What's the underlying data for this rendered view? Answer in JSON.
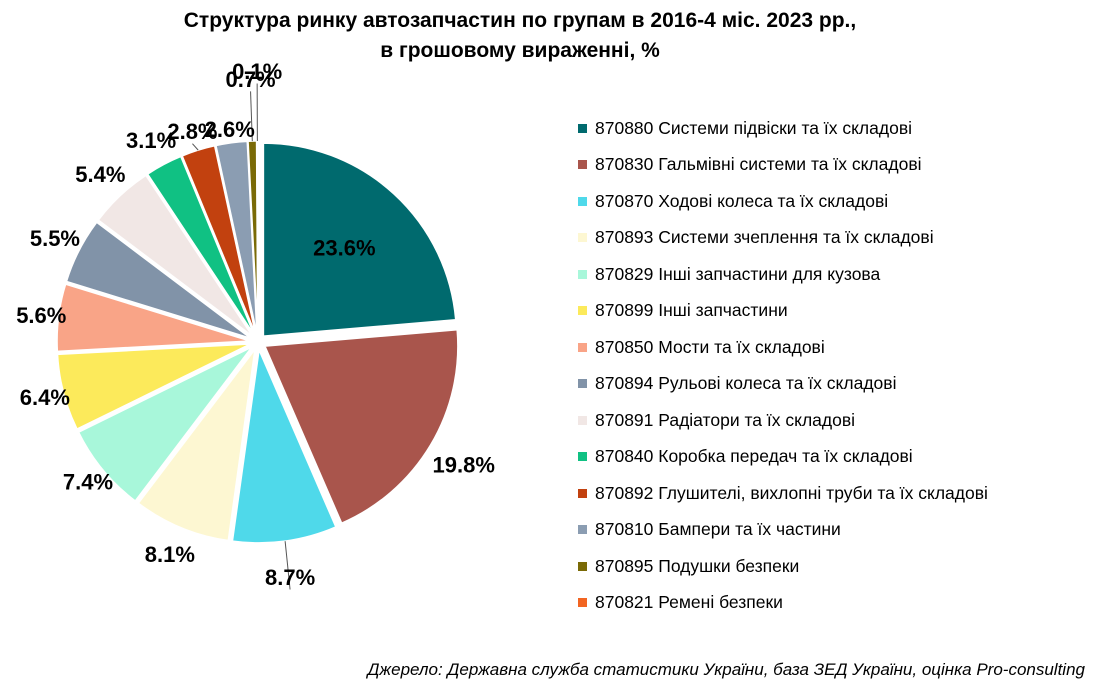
{
  "title": {
    "line1": "Структура ринку автозапчастин по групам в 2016-4 міс. 2023 рр.,",
    "line2": "в грошовому вираженні, %"
  },
  "source": "Джерело: Державна служба статистики України, база ЗЕД України, оцінка Pro-consulting",
  "chart_data": {
    "type": "pie",
    "title": "Структура ринку автозапчастин по групам в 2016-4 міс. 2023 рр., в грошовому вираженні, %",
    "legend_position": "right",
    "slices": [
      {
        "label": "870880 Системи підвіски та їх складові",
        "value": 23.6,
        "display": "23.6%",
        "color": "#006A6E"
      },
      {
        "label": "870830 Гальмівні системи та їх складові",
        "value": 19.8,
        "display": "19.8%",
        "color": "#A9554C"
      },
      {
        "label": "870870 Ходові колеса та їх складові",
        "value": 8.7,
        "display": "8.7%",
        "color": "#4FD9EA"
      },
      {
        "label": "870893 Системи зчеплення та їх складові",
        "value": 8.1,
        "display": "8.1%",
        "color": "#FDF7D2"
      },
      {
        "label": "870829 Інші запчастини для кузова",
        "value": 7.4,
        "display": "7.4%",
        "color": "#A8F7DA"
      },
      {
        "label": "870899 Інші запчастини",
        "value": 6.4,
        "display": "6.4%",
        "color": "#FCEA5B"
      },
      {
        "label": "870850 Мости та їх складові",
        "value": 5.6,
        "display": "5.6%",
        "color": "#F9A487"
      },
      {
        "label": "870894 Рульові колеса та їх складові",
        "value": 5.5,
        "display": "5.5%",
        "color": "#8193A8"
      },
      {
        "label": "870891 Радіатори та їх складові",
        "value": 5.4,
        "display": "5.4%",
        "color": "#F1E7E5"
      },
      {
        "label": "870840 Коробка передач та їх складові",
        "value": 3.1,
        "display": "3.1%",
        "color": "#10C183"
      },
      {
        "label": "870892 Глушителі, вихлопні труби та їх складові",
        "value": 2.8,
        "display": "2.8%",
        "color": "#C2410F"
      },
      {
        "label": "870810 Бампери та їх частини",
        "value": 2.6,
        "display": "2.6%",
        "color": "#8B9DB2"
      },
      {
        "label": "870895 Подушки безпеки",
        "value": 0.7,
        "display": "0.7%",
        "color": "#7A6A06"
      },
      {
        "label": "870821 Ремені безпеки",
        "value": 0.1,
        "display": "0.1%",
        "color": "#F26522"
      }
    ]
  }
}
